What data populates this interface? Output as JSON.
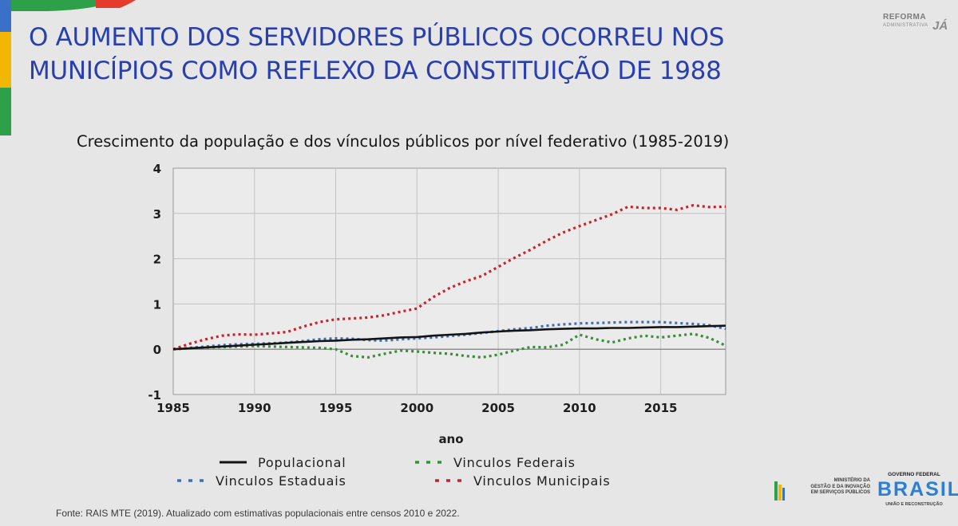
{
  "header": {
    "title_line1": "O AUMENTO DOS SERVIDORES PÚBLICOS OCORREU NOS",
    "title_line2": "MUNICÍPIOS COMO  REFLEXO DA CONSTITUIÇÃO DE 1988",
    "logo_line1": "REFORMA",
    "logo_line2": "ADMINISTRATIVA",
    "logo_line3": "JÁ"
  },
  "colors": {
    "title": "#2a3fae",
    "populacional": "#141414",
    "federais": "#3a8c3a",
    "estaduais": "#3f6fb4",
    "municipais": "#c8232c"
  },
  "chart_data": {
    "type": "line",
    "title": "Crescimento da população e dos vínculos públicos por nível federativo (1985-2019)",
    "xlabel": "ano",
    "ylabel": "",
    "xlim": [
      1985,
      2019
    ],
    "ylim": [
      -1,
      4
    ],
    "xticks": [
      1985,
      1990,
      1995,
      2000,
      2005,
      2010,
      2015
    ],
    "yticks": [
      -1,
      0,
      1,
      2,
      3,
      4
    ],
    "grid": true,
    "legend_position": "bottom",
    "x": [
      1985,
      1986,
      1987,
      1988,
      1989,
      1990,
      1991,
      1992,
      1993,
      1994,
      1995,
      1996,
      1997,
      1998,
      1999,
      2000,
      2001,
      2002,
      2003,
      2004,
      2005,
      2006,
      2007,
      2008,
      2009,
      2010,
      2011,
      2012,
      2013,
      2014,
      2015,
      2016,
      2017,
      2018,
      2019
    ],
    "series": [
      {
        "name": "Populacional",
        "style": "solid",
        "values": [
          0,
          0.02,
          0.04,
          0.06,
          0.08,
          0.1,
          0.12,
          0.14,
          0.16,
          0.18,
          0.19,
          0.21,
          0.22,
          0.24,
          0.26,
          0.27,
          0.3,
          0.32,
          0.34,
          0.37,
          0.39,
          0.41,
          0.42,
          0.44,
          0.45,
          0.46,
          0.46,
          0.47,
          0.47,
          0.48,
          0.49,
          0.49,
          0.5,
          0.51,
          0.52
        ]
      },
      {
        "name": "Vinculos Federais",
        "style": "dotted",
        "values": [
          0,
          0.02,
          0.04,
          0.05,
          0.06,
          0.07,
          0.06,
          0.05,
          0.04,
          0.03,
          0.0,
          -0.15,
          -0.18,
          -0.1,
          -0.03,
          -0.05,
          -0.08,
          -0.1,
          -0.15,
          -0.18,
          -0.12,
          -0.03,
          0.05,
          0.04,
          0.1,
          0.32,
          0.22,
          0.15,
          0.24,
          0.3,
          0.26,
          0.3,
          0.34,
          0.25,
          0.08
        ]
      },
      {
        "name": "Vinculos Estaduais",
        "style": "dotted",
        "values": [
          0,
          0.03,
          0.06,
          0.09,
          0.11,
          0.12,
          0.13,
          0.15,
          0.18,
          0.22,
          0.24,
          0.23,
          0.2,
          0.19,
          0.22,
          0.24,
          0.26,
          0.29,
          0.32,
          0.36,
          0.4,
          0.44,
          0.47,
          0.52,
          0.55,
          0.57,
          0.58,
          0.59,
          0.6,
          0.6,
          0.6,
          0.58,
          0.56,
          0.53,
          0.45
        ]
      },
      {
        "name": "Vinculos Municipais",
        "style": "dotted",
        "values": [
          0,
          0.12,
          0.22,
          0.3,
          0.33,
          0.32,
          0.35,
          0.38,
          0.5,
          0.6,
          0.66,
          0.68,
          0.7,
          0.75,
          0.83,
          0.9,
          1.15,
          1.35,
          1.5,
          1.62,
          1.82,
          2.02,
          2.2,
          2.4,
          2.58,
          2.72,
          2.85,
          2.98,
          3.15,
          3.12,
          3.12,
          3.08,
          3.18,
          3.14,
          3.15
        ]
      }
    ]
  },
  "footer": {
    "source": "Fonte: RAIS MTE (2019). Atualizado com estimativas populacionais entre censos 2010 e 2022.",
    "ministry_line1": "MINISTÉRIO DA",
    "ministry_line2": "GESTÃO E DA INOVAÇÃO",
    "ministry_line3": "EM SERVIÇOS PÚBLICOS",
    "gov_top": "GOVERNO FEDERAL",
    "gov_brasil": "BRASIL",
    "gov_bottom": "UNIÃO E RECONSTRUÇÃO"
  }
}
